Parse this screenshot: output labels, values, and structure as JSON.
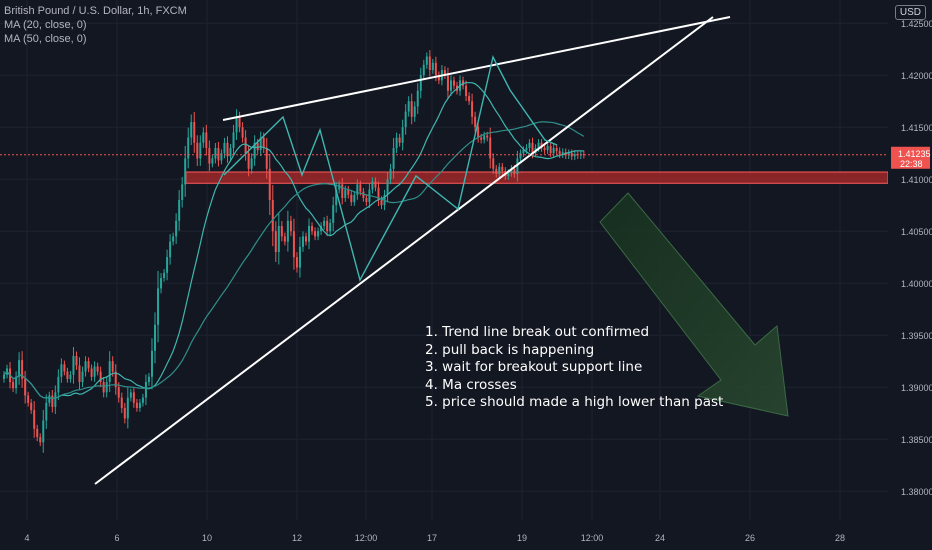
{
  "header": {
    "symbol_title": "British Pound / U.S. Dollar, 1h, FXCM",
    "indicators": [
      "MA (20, close, 0)",
      "MA (50, close, 0)"
    ],
    "currency_button": "USD"
  },
  "notes": [
    "1. Trend line break out confirmed",
    "2. pull back is happening",
    "3. wait for breakout support line",
    "4. Ma crosses",
    "5. price should made a high lower than past"
  ],
  "colors": {
    "background": "#131722",
    "grid": "#1f2330",
    "candle_up": "#26a69a",
    "candle_down": "#ef5350",
    "ma20": "#3fb6b0",
    "ma50": "#2f8f8a",
    "zone": "#b22a2a",
    "price_tag": "#ef5350",
    "annotation_lines": "#ffffff",
    "arrow": "#1e3b26"
  },
  "chart_data": {
    "type": "candlestick",
    "title": "British Pound / U.S. Dollar, 1h, FXCM",
    "y_ticks": [
      "1.42500",
      "1.42000",
      "1.41500",
      "1.41000",
      "1.40500",
      "1.40000",
      "1.39500",
      "1.39000",
      "1.38500",
      "1.38000"
    ],
    "x_ticks": [
      "4",
      "6",
      "10",
      "12",
      "12:00",
      "17",
      "19",
      "12:00",
      "24",
      "26",
      "28"
    ],
    "last_price": "1.41235",
    "countdown": "22:38",
    "support_zone": [
      1.4098,
      1.4105
    ],
    "ylim": [
      1.378,
      1.4255
    ],
    "series": [
      {
        "name": "GBPUSD",
        "x": [
          0,
          1,
          2,
          3,
          4,
          5,
          6,
          7,
          8,
          9,
          10,
          11,
          12,
          13,
          14,
          15,
          16,
          17,
          18,
          19,
          20,
          21,
          22,
          23,
          24,
          25,
          26,
          27,
          28,
          29,
          30,
          31,
          32,
          33,
          34,
          35,
          36,
          37,
          38,
          39,
          40,
          41,
          42,
          43,
          44,
          45,
          46,
          47,
          48,
          49,
          50,
          51,
          52,
          53,
          54,
          55,
          56,
          57,
          58,
          59,
          60,
          61,
          62,
          63,
          64,
          65,
          66,
          67,
          68,
          69,
          70,
          71,
          72,
          73,
          74,
          75,
          76,
          77,
          78,
          79,
          80,
          81,
          82,
          83,
          84,
          85,
          86,
          87,
          88,
          89,
          90,
          91,
          92,
          93,
          94,
          95,
          96,
          97,
          98,
          99,
          100,
          101,
          102,
          103,
          104,
          105,
          106,
          107,
          108,
          109,
          110,
          111,
          112,
          113,
          114,
          115,
          116,
          117,
          118,
          119,
          120,
          121,
          122,
          123,
          124,
          125,
          126,
          127,
          128,
          129,
          130,
          131,
          132,
          133,
          134,
          135,
          136,
          137,
          138,
          139,
          140,
          141,
          142,
          143,
          144,
          145,
          146,
          147,
          148,
          149,
          150,
          151,
          152,
          153,
          154,
          155,
          156,
          157,
          158,
          159,
          160,
          161,
          162,
          163,
          164,
          165,
          166,
          167,
          168,
          169,
          170,
          171,
          172,
          173,
          174,
          175,
          176,
          177,
          178,
          179,
          180,
          181,
          182,
          183,
          184,
          185,
          186,
          187,
          188,
          189,
          190,
          191,
          192
        ],
        "close": [
          1.3912,
          1.3918,
          1.3905,
          1.3899,
          1.391,
          1.3926,
          1.3908,
          1.3892,
          1.3885,
          1.3878,
          1.386,
          1.3852,
          1.3847,
          1.3868,
          1.3885,
          1.3892,
          1.3881,
          1.3895,
          1.391,
          1.3922,
          1.3915,
          1.3908,
          1.3912,
          1.393,
          1.3921,
          1.3905,
          1.3915,
          1.3925,
          1.3918,
          1.391,
          1.392,
          1.3915,
          1.3905,
          1.3895,
          1.3905,
          1.3925,
          1.3915,
          1.39,
          1.389,
          1.388,
          1.387,
          1.389,
          1.3895,
          1.3885,
          1.388,
          1.3885,
          1.389,
          1.3905,
          1.391,
          1.3935,
          1.396,
          1.3995,
          1.4005,
          1.401,
          1.4025,
          1.404,
          1.4045,
          1.406,
          1.408,
          1.4095,
          1.412,
          1.414,
          1.4155,
          1.4135,
          1.412,
          1.4135,
          1.4145,
          1.413,
          1.4115,
          1.412,
          1.413,
          1.4118,
          1.4125,
          1.4135,
          1.4122,
          1.413,
          1.4145,
          1.416,
          1.415,
          1.414,
          1.4125,
          1.411,
          1.412,
          1.4135,
          1.4128,
          1.414,
          1.413,
          1.411,
          1.408,
          1.405,
          1.403,
          1.4055,
          1.4045,
          1.404,
          1.406,
          1.405,
          1.4025,
          1.4015,
          1.4035,
          1.4045,
          1.404,
          1.4055,
          1.405,
          1.4045,
          1.405,
          1.4055,
          1.406,
          1.405,
          1.4058,
          1.4075,
          1.409,
          1.4095,
          1.4082,
          1.409,
          1.4085,
          1.4078,
          1.4085,
          1.4095,
          1.4088,
          1.4082,
          1.4078,
          1.409,
          1.4098,
          1.4092,
          1.408,
          1.4075,
          1.4085,
          1.41,
          1.411,
          1.413,
          1.414,
          1.4135,
          1.415,
          1.4165,
          1.4175,
          1.416,
          1.417,
          1.4185,
          1.42,
          1.421,
          1.4218,
          1.4205,
          1.4212,
          1.42,
          1.4195,
          1.4205,
          1.42,
          1.4185,
          1.4195,
          1.419,
          1.4185,
          1.4195,
          1.419,
          1.418,
          1.4175,
          1.416,
          1.415,
          1.414,
          1.4138,
          1.4142,
          1.414,
          1.412,
          1.411,
          1.4105,
          1.4112,
          1.4108,
          1.4103,
          1.4106,
          1.411,
          1.4105,
          1.412,
          1.4125,
          1.4128,
          1.413,
          1.4135,
          1.4125,
          1.413,
          1.4135,
          1.413,
          1.4128,
          1.4132,
          1.4125,
          1.413,
          1.4127,
          1.4124,
          1.4126,
          1.4123,
          1.4125,
          1.4122,
          1.4124,
          1.4123,
          1.4124,
          1.41235
        ]
      }
    ],
    "trend_lines": [
      {
        "name": "upper-trend-line",
        "from": [
          92,
          1.416
        ],
        "to": [
          275,
          1.4252
        ]
      },
      {
        "name": "lower-support-line",
        "from": [
          40,
          1.383
        ],
        "to": [
          277,
          1.4252
        ]
      }
    ]
  }
}
